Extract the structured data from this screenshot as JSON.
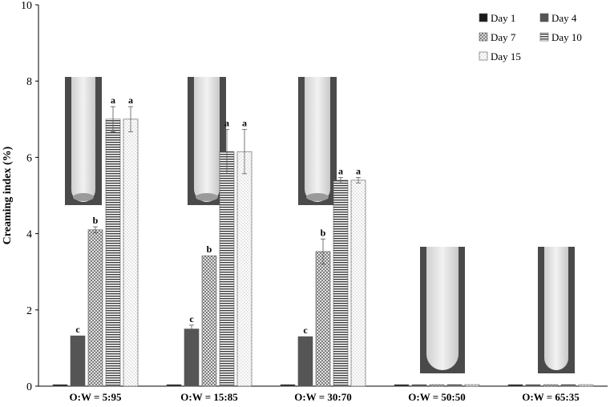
{
  "chart_data": {
    "type": "bar",
    "title": "",
    "xlabel": "",
    "ylabel": "Creaming index (%)",
    "ylim": [
      0,
      10
    ],
    "yticks": [
      "0",
      "2",
      "4",
      "6",
      "8",
      "10"
    ],
    "categories": [
      "O:W = 5:95",
      "O:W = 15:85",
      "O:W = 30:70",
      "O:W = 50:50",
      "O:W = 65:35"
    ],
    "series": [
      {
        "name": "Day 1",
        "pattern": "solid-dark",
        "values": [
          0,
          0,
          0,
          0,
          0
        ],
        "errors": [
          0,
          0,
          0,
          0,
          0
        ],
        "labels": [
          "",
          "",
          "",
          "",
          ""
        ]
      },
      {
        "name": "Day 4",
        "pattern": "solid-gray",
        "values": [
          1.32,
          1.5,
          1.3,
          0,
          0
        ],
        "errors": [
          0,
          0.1,
          0,
          0,
          0
        ],
        "labels": [
          "c",
          "c",
          "c",
          "",
          ""
        ]
      },
      {
        "name": "Day 7",
        "pattern": "crosshatch",
        "values": [
          4.1,
          3.42,
          3.53,
          0,
          0
        ],
        "errors": [
          0.08,
          0,
          0.33,
          0,
          0
        ],
        "labels": [
          "b",
          "b",
          "b",
          "",
          ""
        ]
      },
      {
        "name": "Day 10",
        "pattern": "horizontal-lines",
        "values": [
          7.0,
          6.15,
          5.4,
          0,
          0
        ],
        "errors": [
          0.33,
          0.58,
          0.07,
          0,
          0
        ],
        "labels": [
          "a",
          "a",
          "a",
          "",
          ""
        ]
      },
      {
        "name": "Day 15",
        "pattern": "dotted",
        "values": [
          7.0,
          6.15,
          5.4,
          0,
          0
        ],
        "errors": [
          0.33,
          0.58,
          0.07,
          0,
          0
        ],
        "labels": [
          "a",
          "a",
          "a",
          "",
          ""
        ]
      }
    ],
    "legend_position": "top-right",
    "grid": false,
    "inset_images": [
      "emulsion tube photo",
      "emulsion tube photo",
      "emulsion tube photo",
      "emulsion tube photo",
      "emulsion tube photo"
    ],
    "colors": {
      "day1": "#1a1a1a",
      "day4": "#555555",
      "axis": "#000000",
      "tube_liquid": "#e6e6e6",
      "tube_bg": "#3a3a3a"
    }
  }
}
